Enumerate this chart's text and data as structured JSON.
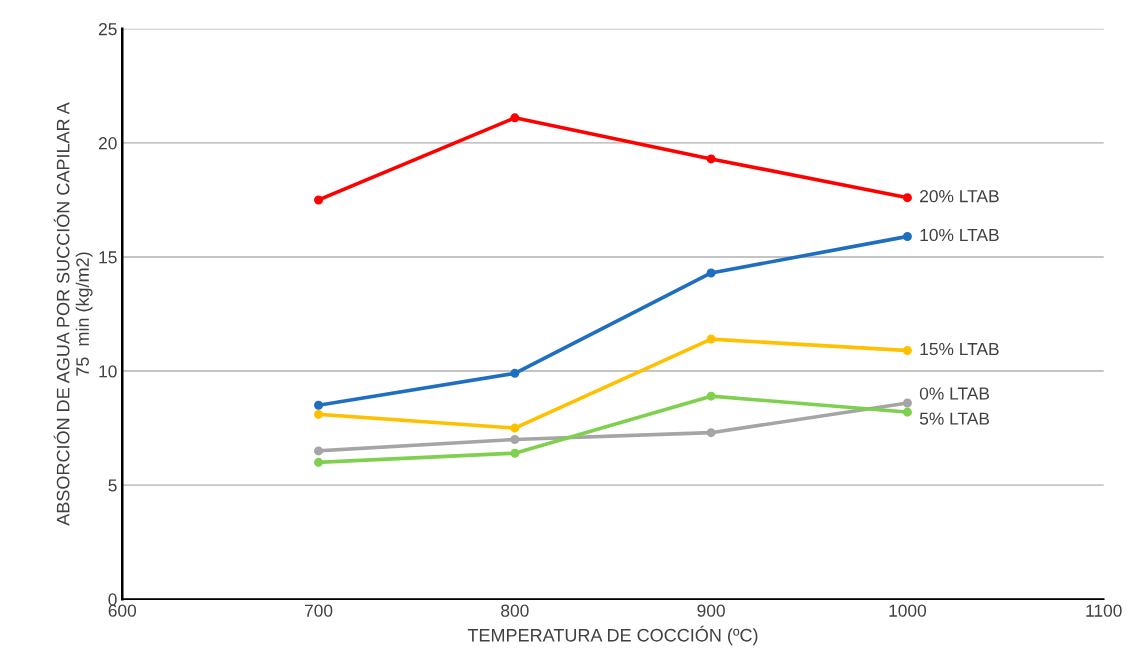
{
  "chart_data": {
    "type": "line",
    "xlabel": "TEMPERATURA DE COCCIÓN (ºC)",
    "ylabel": "ABSORCIÓN DE AGUA POR SUCCIÓN CAPILAR A\n75  min (kg/m2)",
    "x": [
      700,
      800,
      900,
      1000
    ],
    "series": [
      {
        "name": "20% LTAB",
        "color": "#ff0000",
        "values": [
          17.5,
          21.1,
          19.3,
          17.6
        ]
      },
      {
        "name": "10% LTAB",
        "color": "#1f6fc0",
        "values": [
          8.5,
          9.9,
          14.3,
          15.9
        ]
      },
      {
        "name": "15% LTAB",
        "color": "#ffc000",
        "values": [
          8.1,
          7.5,
          11.4,
          10.9
        ]
      },
      {
        "name": "0% LTAB",
        "color": "#a5a5a5",
        "values": [
          6.5,
          7.0,
          7.3,
          8.6
        ]
      },
      {
        "name": "5% LTAB",
        "color": "#7ed04e",
        "values": [
          6.0,
          6.4,
          8.9,
          8.2
        ]
      }
    ],
    "xlim": [
      600,
      1100
    ],
    "xticks": [
      600,
      700,
      800,
      900,
      1000,
      1100
    ],
    "ylim": [
      0,
      25
    ],
    "yticks": [
      0,
      5,
      10,
      15,
      20,
      25
    ],
    "grid": "y",
    "marker": "circle",
    "line_style": "solid",
    "legend": false
  }
}
